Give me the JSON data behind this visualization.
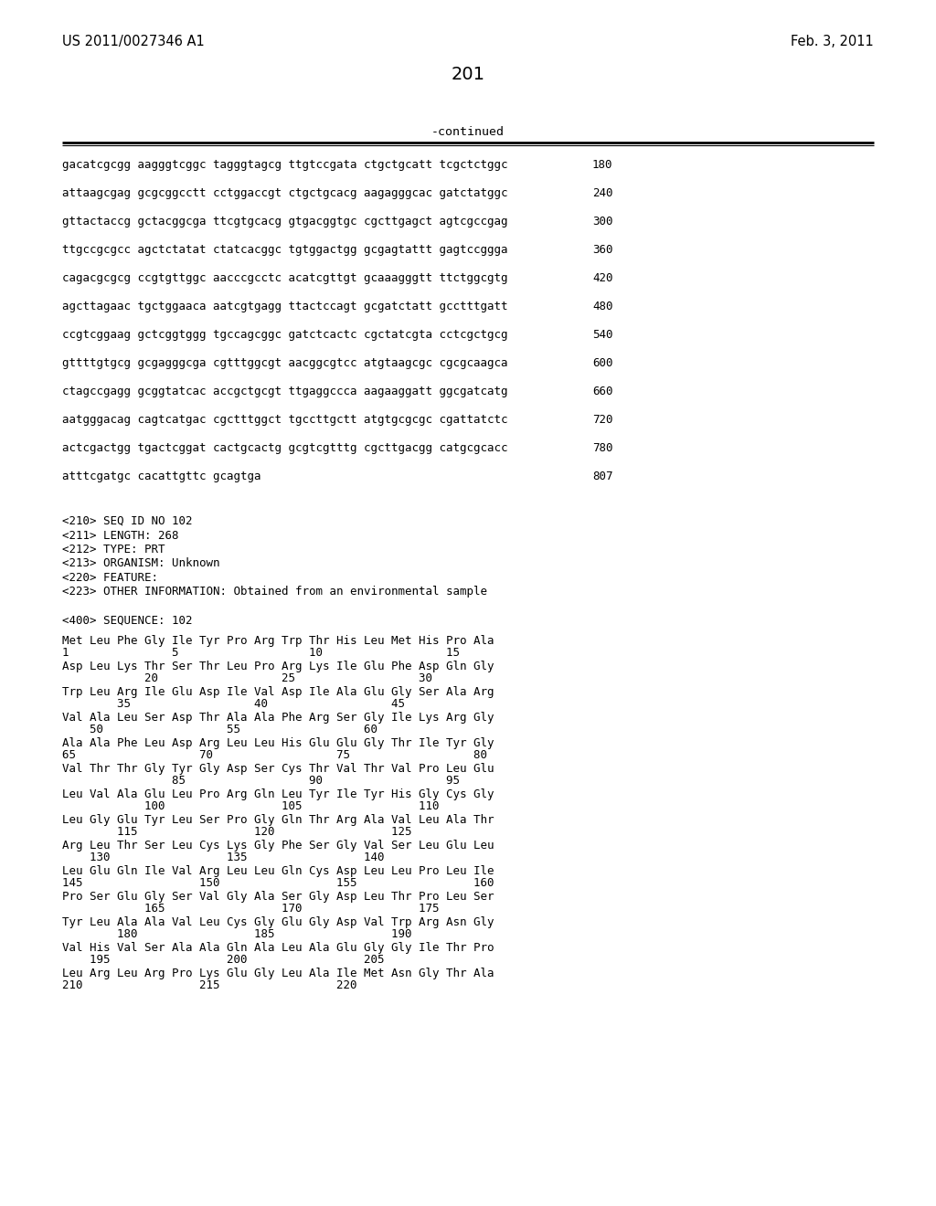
{
  "header_left": "US 2011/0027346 A1",
  "header_right": "Feb. 3, 2011",
  "page_number": "201",
  "continued_label": "-continued",
  "background_color": "#ffffff",
  "text_color": "#000000",
  "sequence_lines": [
    [
      "gacatcgcgg aagggtcggc tagggtagcg ttgtccgata ctgctgcatt tcgctctggc",
      "180"
    ],
    [
      "attaagcgag gcgcggcctt cctggaccgt ctgctgcacg aagagggcac gatctatggc",
      "240"
    ],
    [
      "gttactaccg gctacggcga ttcgtgcacg gtgacggtgc cgcttgagct agtcgccgag",
      "300"
    ],
    [
      "ttgccgcgcc agctctatat ctatcacggc tgtggactgg gcgagtattt gagtccggga",
      "360"
    ],
    [
      "cagacgcgcg ccgtgttggc aacccgcctc acatcgttgt gcaaagggtt ttctggcgtg",
      "420"
    ],
    [
      "agcttagaac tgctggaaca aatcgtgagg ttactccagt gcgatctatt gcctttgatt",
      "480"
    ],
    [
      "ccgtcggaag gctcggtggg tgccagcggc gatctcactc cgctatcgta cctcgctgcg",
      "540"
    ],
    [
      "gttttgtgcg gcgagggcga cgtttggcgt aacggcgtcc atgtaagcgc cgcgcaagca",
      "600"
    ],
    [
      "ctagccgagg gcggtatcac accgctgcgt ttgaggccca aagaaggatt ggcgatcatg",
      "660"
    ],
    [
      "aatgggacag cagtcatgac cgctttggct tgccttgctt atgtgcgcgc cgattatctc",
      "720"
    ],
    [
      "actcgactgg tgactcggat cactgcactg gcgtcgtttg cgcttgacgg catgcgcacc",
      "780"
    ],
    [
      "atttcgatgc cacattgttc gcagtga",
      "807"
    ]
  ],
  "metadata_lines": [
    "<210> SEQ ID NO 102",
    "<211> LENGTH: 268",
    "<212> TYPE: PRT",
    "<213> ORGANISM: Unknown",
    "<220> FEATURE:",
    "<223> OTHER INFORMATION: Obtained from an environmental sample"
  ],
  "sequence_label": "<400> SEQUENCE: 102",
  "protein_lines": [
    {
      "seq": "Met Leu Phe Gly Ile Tyr Pro Arg Trp Thr His Leu Met His Pro Ala",
      "nums": "1               5                   10                  15"
    },
    {
      "seq": "Asp Leu Lys Thr Ser Thr Leu Pro Arg Lys Ile Glu Phe Asp Gln Gly",
      "nums": "            20                  25                  30"
    },
    {
      "seq": "Trp Leu Arg Ile Glu Asp Ile Val Asp Ile Ala Glu Gly Ser Ala Arg",
      "nums": "        35                  40                  45"
    },
    {
      "seq": "Val Ala Leu Ser Asp Thr Ala Ala Phe Arg Ser Gly Ile Lys Arg Gly",
      "nums": "    50                  55                  60"
    },
    {
      "seq": "Ala Ala Phe Leu Asp Arg Leu Leu His Glu Glu Gly Thr Ile Tyr Gly",
      "nums": "65                  70                  75                  80"
    },
    {
      "seq": "Val Thr Thr Gly Tyr Gly Asp Ser Cys Thr Val Thr Val Pro Leu Glu",
      "nums": "                85                  90                  95"
    },
    {
      "seq": "Leu Val Ala Glu Leu Pro Arg Gln Leu Tyr Ile Tyr His Gly Cys Gly",
      "nums": "            100                 105                 110"
    },
    {
      "seq": "Leu Gly Glu Tyr Leu Ser Pro Gly Gln Thr Arg Ala Val Leu Ala Thr",
      "nums": "        115                 120                 125"
    },
    {
      "seq": "Arg Leu Thr Ser Leu Cys Lys Gly Phe Ser Gly Val Ser Leu Glu Leu",
      "nums": "    130                 135                 140"
    },
    {
      "seq": "Leu Glu Gln Ile Val Arg Leu Leu Gln Cys Asp Leu Leu Pro Leu Ile",
      "nums": "145                 150                 155                 160"
    },
    {
      "seq": "Pro Ser Glu Gly Ser Val Gly Ala Ser Gly Asp Leu Thr Pro Leu Ser",
      "nums": "            165                 170                 175"
    },
    {
      "seq": "Tyr Leu Ala Ala Val Leu Cys Gly Glu Gly Asp Val Trp Arg Asn Gly",
      "nums": "        180                 185                 190"
    },
    {
      "seq": "Val His Val Ser Ala Ala Gln Ala Leu Ala Glu Gly Gly Ile Thr Pro",
      "nums": "    195                 200                 205"
    },
    {
      "seq": "Leu Arg Leu Arg Pro Lys Glu Gly Leu Ala Ile Met Asn Gly Thr Ala",
      "nums": "210                 215                 220"
    }
  ]
}
